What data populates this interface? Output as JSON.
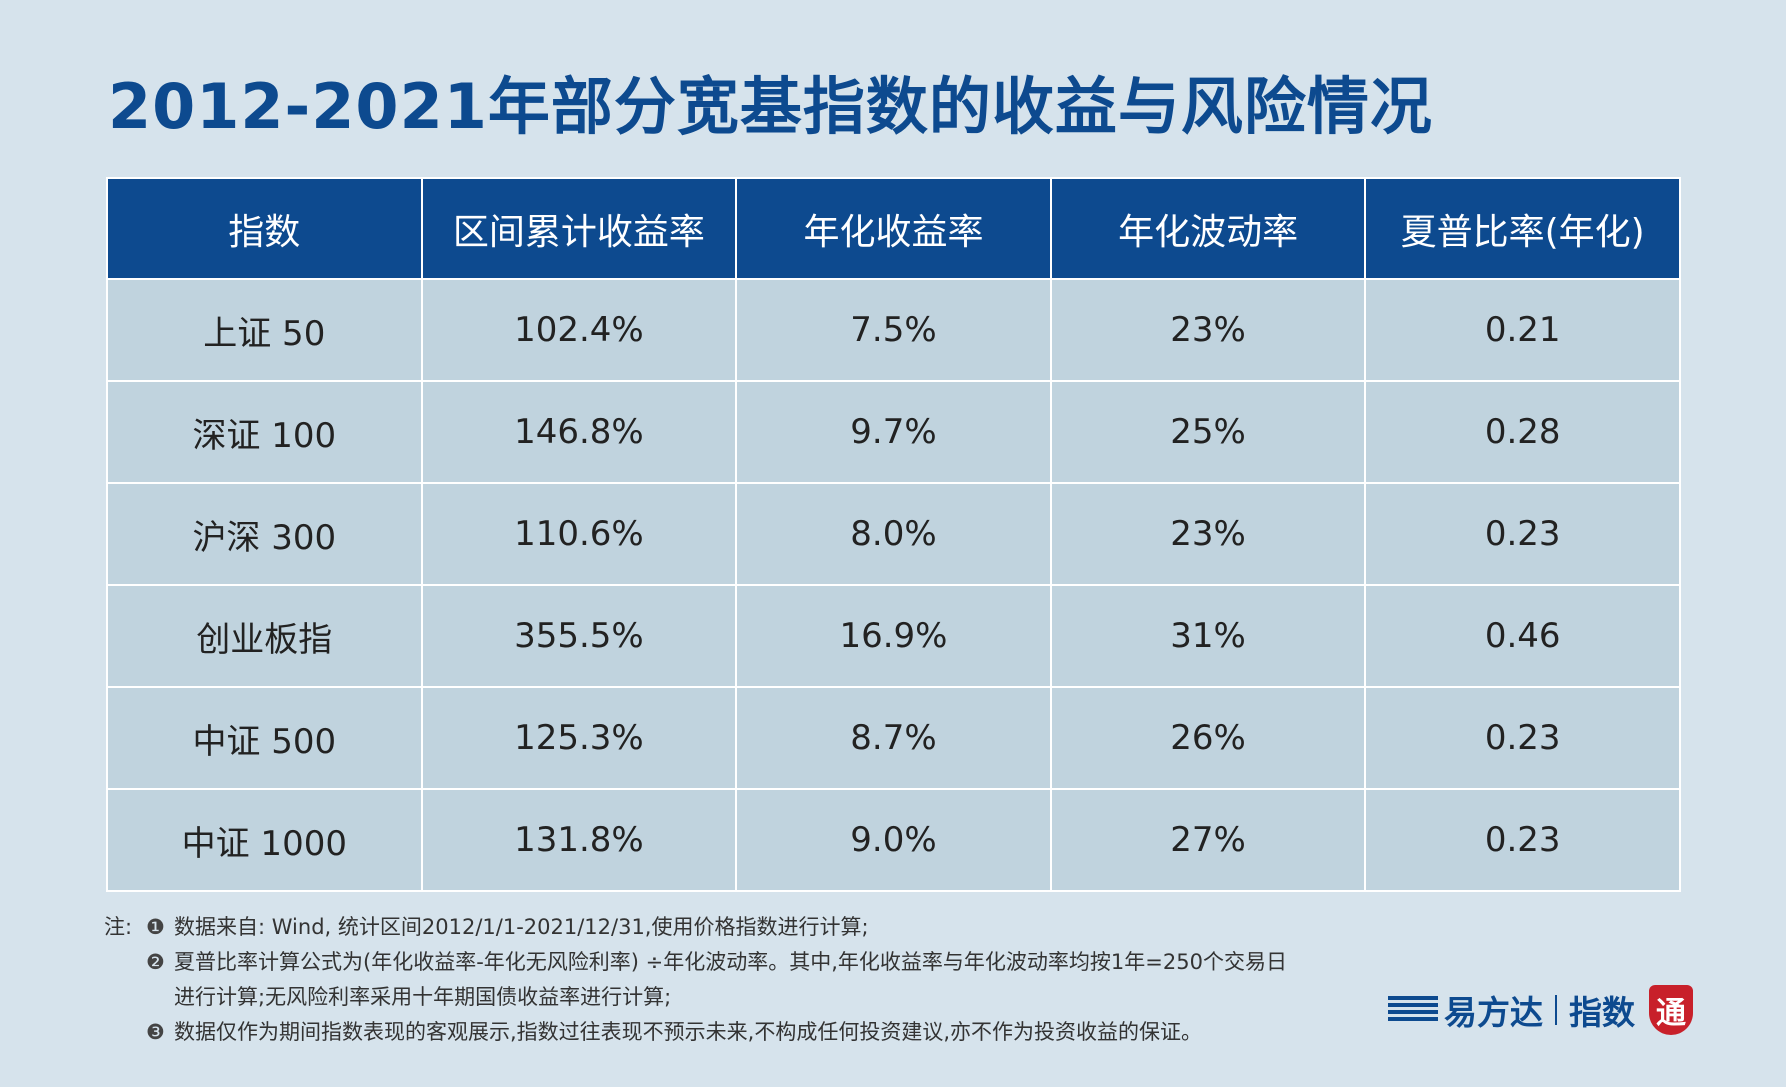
{
  "header": {
    "title": "2012-2021年部分宽基指数的收益与风险情况"
  },
  "table": {
    "columns": [
      "指数",
      "区间累计收益率",
      "年化收益率",
      "年化波动率",
      "夏普比率(年化)"
    ],
    "rows": [
      [
        "上证 50",
        "102.4%",
        "7.5%",
        "23%",
        "0.21"
      ],
      [
        "深证 100",
        "146.8%",
        "9.7%",
        "25%",
        "0.28"
      ],
      [
        "沪深 300",
        "110.6%",
        "8.0%",
        "23%",
        "0.23"
      ],
      [
        "创业板指",
        "355.5%",
        "16.9%",
        "31%",
        "0.46"
      ],
      [
        "中证 500",
        "125.3%",
        "8.7%",
        "26%",
        "0.23"
      ],
      [
        "中证 1000",
        "131.8%",
        "9.0%",
        "27%",
        "0.23"
      ]
    ]
  },
  "notes": {
    "label": "注:",
    "items": [
      {
        "marker": "❶",
        "text": "数据来自: Wind, 统计区间2012/1/1-2021/12/31,使用价格指数进行计算;"
      },
      {
        "marker": "❷",
        "text": "夏普比率计算公式为(年化收益率-年化无风险利率) ÷年化波动率。其中,年化收益率与年化波动率均按1年=250个交易日进行计算;无风险利率采用十年期国债收益率进行计算;"
      },
      {
        "marker": "❸",
        "text": "数据仅作为期间指数表现的客观展示,指数过往表现不预示未来,不构成任何投资建议,亦不作为投资收益的保证。"
      }
    ]
  },
  "logo": {
    "brand": "易方达",
    "sub": "指数",
    "seal": "通"
  }
}
